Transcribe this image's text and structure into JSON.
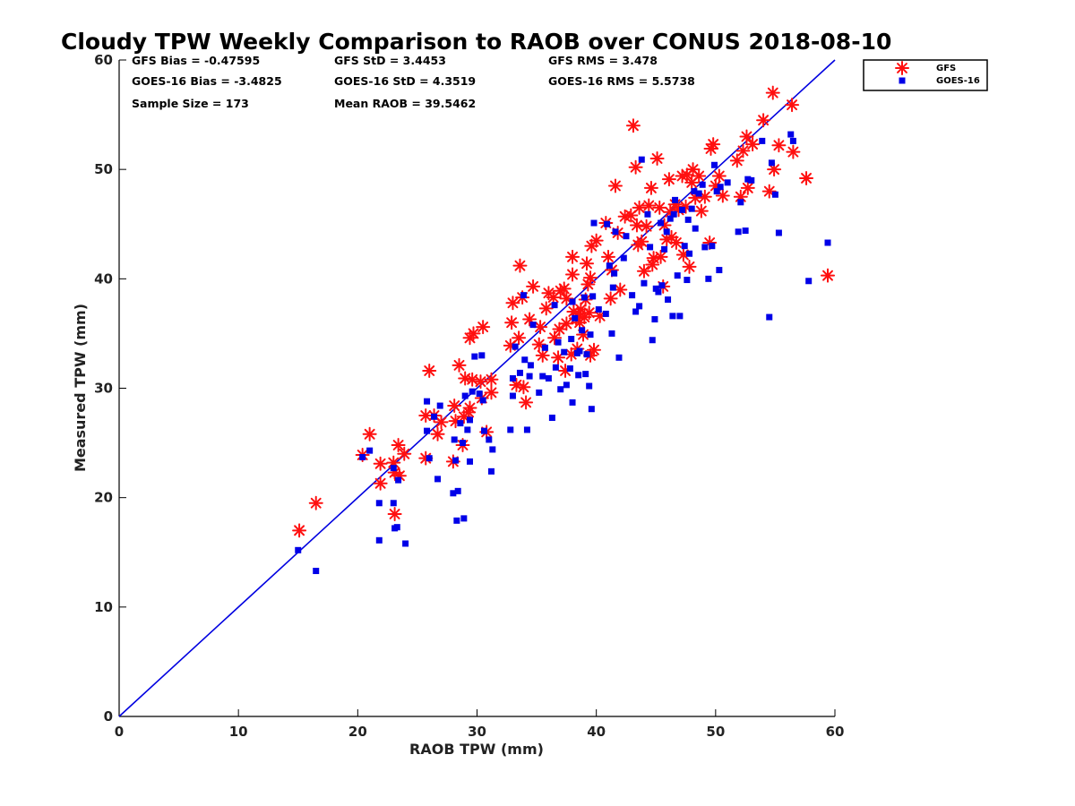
{
  "chart_data": {
    "type": "scatter",
    "title": "Cloudy TPW Weekly Comparison to RAOB over CONUS 2018-08-10",
    "xlabel": "RAOB TPW (mm)",
    "ylabel": "Measured TPW (mm)",
    "xlim": [
      0,
      60
    ],
    "ylim": [
      0,
      60
    ],
    "xticks": [
      "0",
      "10",
      "20",
      "30",
      "40",
      "50",
      "60"
    ],
    "yticks": [
      "0",
      "10",
      "20",
      "30",
      "40",
      "50",
      "60"
    ],
    "grid": false,
    "legend_position": "outside-top-right",
    "reference_line": {
      "type": "one-to-one",
      "color": "#0000e0"
    },
    "stats": {
      "gfs_bias": "GFS Bias = -0.47595",
      "goes_bias": "GOES-16 Bias = -3.4825",
      "sample_size": "Sample Size = 173",
      "gfs_std": "GFS StD = 3.4453",
      "goes_std": "GOES-16 StD = 4.3519",
      "mean_raob": "Mean RAOB = 39.5462",
      "gfs_rms": "GFS RMS = 3.478",
      "goes_rms": "GOES-16 RMS = 5.5738"
    },
    "series": [
      {
        "name": "GFS",
        "marker": "asterisk",
        "color": "#ff1010",
        "points": [
          [
            15.1,
            17.0
          ],
          [
            16.5,
            19.5
          ],
          [
            20.4,
            23.9
          ],
          [
            21.0,
            25.8
          ],
          [
            21.9,
            23.1
          ],
          [
            21.9,
            21.3
          ],
          [
            23.0,
            23.2
          ],
          [
            23.1,
            18.5
          ],
          [
            23.1,
            22.3
          ],
          [
            23.4,
            24.8
          ],
          [
            23.5,
            22.0
          ],
          [
            23.9,
            24.0
          ],
          [
            25.7,
            23.6
          ],
          [
            25.7,
            27.5
          ],
          [
            26.0,
            31.6
          ],
          [
            26.4,
            27.5
          ],
          [
            26.7,
            25.8
          ],
          [
            27.0,
            26.9
          ],
          [
            28.0,
            23.3
          ],
          [
            28.1,
            28.4
          ],
          [
            28.2,
            27.0
          ],
          [
            28.5,
            32.1
          ],
          [
            28.8,
            24.8
          ],
          [
            28.9,
            27.4
          ],
          [
            29.0,
            30.9
          ],
          [
            29.3,
            27.8
          ],
          [
            29.4,
            28.2
          ],
          [
            29.4,
            34.6
          ],
          [
            29.6,
            30.8
          ],
          [
            29.7,
            35.0
          ],
          [
            30.3,
            30.6
          ],
          [
            30.4,
            29.1
          ],
          [
            30.5,
            35.6
          ],
          [
            30.8,
            26.0
          ],
          [
            31.2,
            29.6
          ],
          [
            31.2,
            30.8
          ],
          [
            32.8,
            33.9
          ],
          [
            32.9,
            36.0
          ],
          [
            33.0,
            37.8
          ],
          [
            33.3,
            30.3
          ],
          [
            33.5,
            34.6
          ],
          [
            33.6,
            41.2
          ],
          [
            33.8,
            38.3
          ],
          [
            33.9,
            30.1
          ],
          [
            34.1,
            28.7
          ],
          [
            34.4,
            36.3
          ],
          [
            34.7,
            39.3
          ],
          [
            35.2,
            34.0
          ],
          [
            35.3,
            35.6
          ],
          [
            35.5,
            33.0
          ],
          [
            35.8,
            37.3
          ],
          [
            36.0,
            38.7
          ],
          [
            36.4,
            38.3
          ],
          [
            36.5,
            34.6
          ],
          [
            36.8,
            32.8
          ],
          [
            36.9,
            35.4
          ],
          [
            37.0,
            38.9
          ],
          [
            37.3,
            39.1
          ],
          [
            37.4,
            31.6
          ],
          [
            37.5,
            35.9
          ],
          [
            37.5,
            38.2
          ],
          [
            37.9,
            33.1
          ],
          [
            38.0,
            40.4
          ],
          [
            38.0,
            42.0
          ],
          [
            38.1,
            37.0
          ],
          [
            38.3,
            36.4
          ],
          [
            38.4,
            33.6
          ],
          [
            38.5,
            36.8
          ],
          [
            38.6,
            36.0
          ],
          [
            38.7,
            37.2
          ],
          [
            38.9,
            34.9
          ],
          [
            39.0,
            36.5
          ],
          [
            39.1,
            38.1
          ],
          [
            39.2,
            41.4
          ],
          [
            39.3,
            39.5
          ],
          [
            39.4,
            36.9
          ],
          [
            39.5,
            40.1
          ],
          [
            39.5,
            33.0
          ],
          [
            39.6,
            43.0
          ],
          [
            39.8,
            33.5
          ],
          [
            40.0,
            43.5
          ],
          [
            40.3,
            36.6
          ],
          [
            40.8,
            45.1
          ],
          [
            41.0,
            42.0
          ],
          [
            41.2,
            38.2
          ],
          [
            41.3,
            40.8
          ],
          [
            41.6,
            48.5
          ],
          [
            41.8,
            44.2
          ],
          [
            42.0,
            39.0
          ],
          [
            42.4,
            45.7
          ],
          [
            42.9,
            45.8
          ],
          [
            43.1,
            54.0
          ],
          [
            43.3,
            50.2
          ],
          [
            43.4,
            44.9
          ],
          [
            43.5,
            43.1
          ],
          [
            43.6,
            46.5
          ],
          [
            43.8,
            43.4
          ],
          [
            44.0,
            40.7
          ],
          [
            44.2,
            44.8
          ],
          [
            44.4,
            46.7
          ],
          [
            44.6,
            48.3
          ],
          [
            44.7,
            41.3
          ],
          [
            44.8,
            41.9
          ],
          [
            45.1,
            51.0
          ],
          [
            45.3,
            46.5
          ],
          [
            45.4,
            42.0
          ],
          [
            45.6,
            39.3
          ],
          [
            45.7,
            44.9
          ],
          [
            45.9,
            43.6
          ],
          [
            46.1,
            49.1
          ],
          [
            46.2,
            46.1
          ],
          [
            46.3,
            43.8
          ],
          [
            46.6,
            46.8
          ],
          [
            46.7,
            43.3
          ],
          [
            46.9,
            46.3
          ],
          [
            47.2,
            49.4
          ],
          [
            47.3,
            42.2
          ],
          [
            47.5,
            46.6
          ],
          [
            47.6,
            49.5
          ],
          [
            47.8,
            41.1
          ],
          [
            48.0,
            48.8
          ],
          [
            48.1,
            50.0
          ],
          [
            48.3,
            47.4
          ],
          [
            48.6,
            49.4
          ],
          [
            48.8,
            46.2
          ],
          [
            49.1,
            47.5
          ],
          [
            49.5,
            43.3
          ],
          [
            49.6,
            51.9
          ],
          [
            49.8,
            52.3
          ],
          [
            50.0,
            48.5
          ],
          [
            50.3,
            49.4
          ],
          [
            50.6,
            47.6
          ],
          [
            51.8,
            50.8
          ],
          [
            52.1,
            47.5
          ],
          [
            52.3,
            51.7
          ],
          [
            52.6,
            53.0
          ],
          [
            52.7,
            48.3
          ],
          [
            53.1,
            52.3
          ],
          [
            54.0,
            54.5
          ],
          [
            54.5,
            48.0
          ],
          [
            54.8,
            57.0
          ],
          [
            54.9,
            50.0
          ],
          [
            55.3,
            52.2
          ],
          [
            56.4,
            55.9
          ],
          [
            56.5,
            51.6
          ],
          [
            57.6,
            49.2
          ],
          [
            59.4,
            40.3
          ]
        ]
      },
      {
        "name": "GOES-16",
        "marker": "square",
        "color": "#0000e8",
        "points": [
          [
            15.0,
            15.2
          ],
          [
            16.5,
            13.3
          ],
          [
            20.4,
            23.7
          ],
          [
            21.0,
            24.3
          ],
          [
            21.8,
            19.5
          ],
          [
            21.8,
            16.1
          ],
          [
            23.0,
            19.5
          ],
          [
            23.0,
            22.7
          ],
          [
            23.1,
            17.2
          ],
          [
            23.3,
            17.3
          ],
          [
            23.4,
            21.6
          ],
          [
            24.0,
            15.8
          ],
          [
            25.8,
            26.1
          ],
          [
            25.8,
            28.8
          ],
          [
            26.0,
            23.6
          ],
          [
            26.4,
            27.4
          ],
          [
            26.7,
            21.7
          ],
          [
            26.9,
            28.4
          ],
          [
            28.0,
            20.4
          ],
          [
            28.1,
            25.3
          ],
          [
            28.2,
            23.4
          ],
          [
            28.3,
            17.9
          ],
          [
            28.4,
            20.6
          ],
          [
            28.6,
            26.8
          ],
          [
            28.8,
            25.0
          ],
          [
            28.9,
            18.1
          ],
          [
            29.0,
            29.3
          ],
          [
            29.2,
            26.2
          ],
          [
            29.4,
            23.3
          ],
          [
            29.4,
            27.1
          ],
          [
            29.6,
            29.7
          ],
          [
            29.8,
            32.9
          ],
          [
            30.2,
            29.5
          ],
          [
            30.4,
            33.0
          ],
          [
            30.5,
            28.9
          ],
          [
            30.6,
            26.1
          ],
          [
            31.0,
            25.3
          ],
          [
            31.2,
            22.4
          ],
          [
            31.3,
            24.4
          ],
          [
            32.8,
            26.2
          ],
          [
            33.0,
            29.3
          ],
          [
            33.0,
            30.9
          ],
          [
            33.2,
            33.8
          ],
          [
            33.6,
            31.4
          ],
          [
            33.9,
            38.5
          ],
          [
            34.0,
            32.6
          ],
          [
            34.2,
            26.2
          ],
          [
            34.4,
            31.1
          ],
          [
            34.5,
            32.1
          ],
          [
            34.7,
            35.8
          ],
          [
            35.2,
            29.6
          ],
          [
            35.5,
            31.1
          ],
          [
            35.7,
            33.7
          ],
          [
            36.0,
            30.9
          ],
          [
            36.3,
            27.3
          ],
          [
            36.5,
            37.6
          ],
          [
            36.6,
            31.9
          ],
          [
            36.8,
            34.2
          ],
          [
            37.0,
            29.9
          ],
          [
            37.3,
            33.3
          ],
          [
            37.5,
            30.3
          ],
          [
            37.8,
            31.8
          ],
          [
            37.9,
            34.5
          ],
          [
            38.0,
            28.7
          ],
          [
            38.0,
            37.9
          ],
          [
            38.2,
            36.4
          ],
          [
            38.4,
            33.2
          ],
          [
            38.5,
            31.2
          ],
          [
            38.6,
            33.4
          ],
          [
            38.8,
            35.3
          ],
          [
            39.0,
            38.3
          ],
          [
            39.1,
            31.3
          ],
          [
            39.2,
            33.1
          ],
          [
            39.4,
            30.2
          ],
          [
            39.5,
            34.9
          ],
          [
            39.6,
            28.1
          ],
          [
            39.7,
            38.4
          ],
          [
            39.8,
            45.1
          ],
          [
            40.2,
            37.2
          ],
          [
            40.8,
            36.8
          ],
          [
            40.9,
            45.0
          ],
          [
            41.1,
            41.2
          ],
          [
            41.3,
            35.0
          ],
          [
            41.4,
            39.2
          ],
          [
            41.5,
            40.5
          ],
          [
            41.6,
            44.3
          ],
          [
            41.9,
            32.8
          ],
          [
            42.3,
            41.9
          ],
          [
            42.5,
            43.9
          ],
          [
            43.0,
            38.5
          ],
          [
            43.3,
            37.0
          ],
          [
            43.6,
            37.5
          ],
          [
            43.8,
            50.9
          ],
          [
            44.0,
            39.6
          ],
          [
            44.3,
            45.9
          ],
          [
            44.5,
            42.9
          ],
          [
            44.7,
            34.4
          ],
          [
            44.9,
            36.3
          ],
          [
            45.0,
            39.1
          ],
          [
            45.2,
            38.8
          ],
          [
            45.4,
            45.1
          ],
          [
            45.5,
            39.4
          ],
          [
            45.7,
            42.7
          ],
          [
            45.9,
            44.3
          ],
          [
            46.0,
            38.1
          ],
          [
            46.2,
            45.5
          ],
          [
            46.4,
            36.6
          ],
          [
            46.5,
            45.9
          ],
          [
            46.6,
            47.2
          ],
          [
            46.8,
            40.3
          ],
          [
            47.0,
            36.6
          ],
          [
            47.2,
            46.3
          ],
          [
            47.4,
            43.0
          ],
          [
            47.6,
            39.9
          ],
          [
            47.7,
            45.4
          ],
          [
            47.8,
            42.3
          ],
          [
            48.0,
            46.4
          ],
          [
            48.2,
            48.0
          ],
          [
            48.3,
            44.6
          ],
          [
            48.6,
            47.8
          ],
          [
            48.9,
            48.6
          ],
          [
            49.1,
            42.9
          ],
          [
            49.4,
            40.0
          ],
          [
            49.7,
            43.0
          ],
          [
            49.9,
            50.4
          ],
          [
            50.1,
            48.0
          ],
          [
            50.3,
            40.8
          ],
          [
            50.4,
            48.4
          ],
          [
            51.0,
            48.8
          ],
          [
            51.9,
            44.3
          ],
          [
            52.1,
            47.0
          ],
          [
            52.5,
            44.4
          ],
          [
            52.7,
            49.1
          ],
          [
            53.0,
            49.0
          ],
          [
            53.9,
            52.6
          ],
          [
            54.5,
            36.5
          ],
          [
            54.7,
            50.6
          ],
          [
            55.0,
            47.7
          ],
          [
            55.3,
            44.2
          ],
          [
            56.3,
            53.2
          ],
          [
            56.5,
            52.6
          ],
          [
            57.8,
            39.8
          ],
          [
            59.4,
            43.3
          ]
        ]
      }
    ]
  }
}
